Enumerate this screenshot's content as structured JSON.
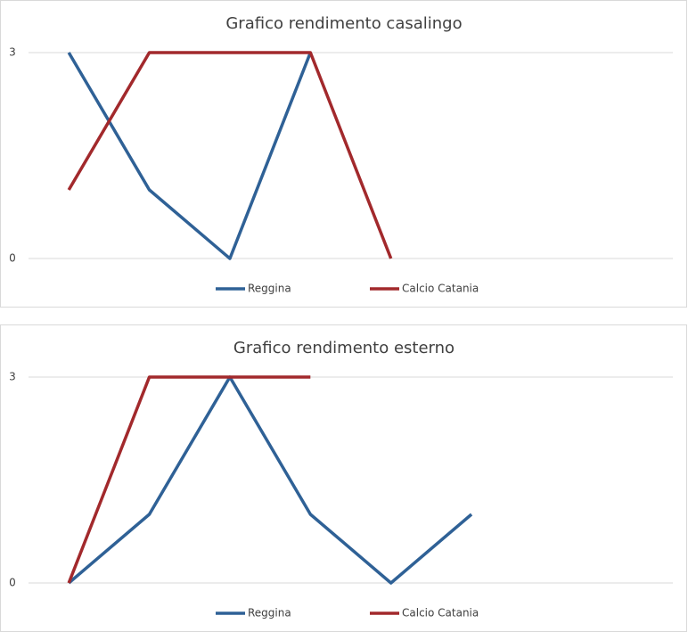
{
  "chart_data": [
    {
      "type": "line",
      "title": "Grafico rendimento casalingo",
      "categories": [
        null,
        null,
        null,
        null,
        null,
        null,
        null,
        null
      ],
      "series": [
        {
          "name": "Reggina",
          "color": "#2f6196",
          "values": [
            3,
            1,
            0,
            3,
            null,
            null,
            null,
            null
          ]
        },
        {
          "name": "Calcio Catania",
          "color": "#a2292c",
          "values": [
            1,
            3,
            3,
            3,
            0,
            null,
            null,
            null
          ]
        }
      ],
      "ylim": [
        0,
        3
      ],
      "yticks": [
        0,
        3
      ],
      "grid": true,
      "legend": "bottom"
    },
    {
      "type": "line",
      "title": "Grafico rendimento esterno",
      "categories": [
        null,
        null,
        null,
        null,
        null,
        null,
        null,
        null
      ],
      "series": [
        {
          "name": "Reggina",
          "color": "#2f6196",
          "values": [
            0,
            1,
            3,
            1,
            0,
            1,
            null,
            null
          ]
        },
        {
          "name": "Calcio Catania",
          "color": "#a2292c",
          "values": [
            0,
            3,
            3,
            3,
            null,
            null,
            null,
            null
          ]
        }
      ],
      "ylim": [
        0,
        3
      ],
      "yticks": [
        0,
        3
      ],
      "grid": true,
      "legend": "bottom"
    }
  ]
}
